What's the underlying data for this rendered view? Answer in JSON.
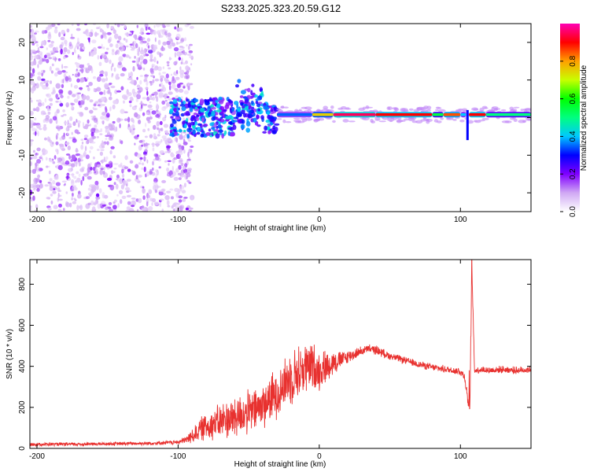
{
  "chart_data": [
    {
      "type": "heatmap",
      "title": "S233.2025.323.20.59.G12",
      "xlabel": "Height of straight line (km)",
      "ylabel": "Frequency (Hz)",
      "xlim": [
        -205,
        150
      ],
      "ylim": [
        -25,
        25
      ],
      "x_ticks": [
        -200,
        -100,
        0,
        100
      ],
      "y_ticks": [
        -20,
        -10,
        0,
        10,
        20
      ],
      "colorbar": {
        "label": "Normalized spectral amplitude",
        "range": [
          0,
          1
        ],
        "ticks": [
          "0.0",
          "0.2",
          "0.4",
          "0.6",
          "0.8"
        ],
        "tick_values": [
          0,
          0.2,
          0.4,
          0.6,
          0.8
        ]
      },
      "features": [
        {
          "name": "scattered noise",
          "x_range": [
            -205,
            -95
          ],
          "freq_range": [
            -25,
            25
          ],
          "amplitude": 0.1
        },
        {
          "name": "transition cluster",
          "x_range": [
            -105,
            -30
          ],
          "freq_range": [
            -5,
            11
          ],
          "amplitude": 0.3
        },
        {
          "name": "carrier line",
          "x_range": [
            -30,
            150
          ],
          "freq_center": 0.8,
          "amplitude": 0.95
        },
        {
          "name": "dip",
          "x_center": 105,
          "freq_range": [
            -6,
            2
          ],
          "amplitude": 0.4
        }
      ]
    },
    {
      "type": "line",
      "xlabel": "Height of straight line (km)",
      "ylabel": "SNR (10 * v/v)",
      "xlim": [
        -205,
        150
      ],
      "ylim": [
        0,
        920
      ],
      "x_ticks": [
        -200,
        -100,
        0,
        100
      ],
      "y_ticks": [
        0,
        200,
        400,
        600,
        800
      ],
      "series": [
        {
          "name": "SNR",
          "color": "#e8312f",
          "x": [
            -205,
            -180,
            -150,
            -120,
            -100,
            -95,
            -90,
            -85,
            -80,
            -75,
            -70,
            -65,
            -60,
            -55,
            -50,
            -45,
            -40,
            -35,
            -30,
            -25,
            -20,
            -15,
            -10,
            -5,
            0,
            5,
            10,
            15,
            20,
            25,
            30,
            35,
            40,
            45,
            50,
            60,
            70,
            80,
            90,
            95,
            100,
            103,
            105,
            107,
            108,
            110,
            115,
            120,
            130,
            140,
            150
          ],
          "y": [
            20,
            20,
            22,
            25,
            30,
            40,
            60,
            90,
            110,
            120,
            130,
            145,
            150,
            165,
            175,
            190,
            210,
            240,
            270,
            310,
            350,
            370,
            390,
            400,
            380,
            400,
            420,
            430,
            445,
            460,
            475,
            485,
            480,
            465,
            450,
            430,
            410,
            395,
            385,
            380,
            375,
            350,
            250,
            150,
            900,
            380,
            385,
            380,
            385,
            380,
            385
          ],
          "noise": [
            10,
            10,
            10,
            10,
            12,
            20,
            40,
            60,
            80,
            90,
            100,
            110,
            120,
            120,
            120,
            120,
            130,
            130,
            140,
            140,
            150,
            150,
            150,
            140,
            110,
            90,
            70,
            50,
            40,
            30,
            25,
            25,
            25,
            25,
            20,
            20,
            20,
            20,
            20,
            20,
            25,
            25,
            30,
            30,
            40,
            20,
            20,
            20,
            20,
            20,
            20
          ]
        }
      ]
    }
  ]
}
